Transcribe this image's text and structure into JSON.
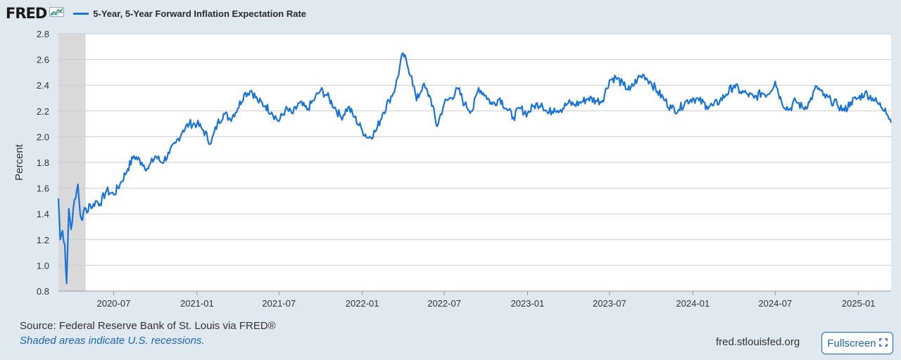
{
  "header": {
    "logo": "FRED",
    "icon": "fred-chart-icon",
    "legend_label": "5-Year, 5-Year Forward Inflation Expectation Rate"
  },
  "footer": {
    "source": "Source: Federal Reserve Bank of St. Louis via FRED®",
    "note": "Shaded areas indicate U.S. recessions.",
    "url": "fred.stlouisfed.org",
    "fullscreen_label": "Fullscreen",
    "fullscreen_icon": "expand-icon"
  },
  "colors": {
    "series": "#1a74d8",
    "recession": "#d9d9d9",
    "background": "#e1e9f0",
    "plot": "#ffffff",
    "grid": "#cccccc",
    "link": "#1a65c0"
  },
  "chart_data": {
    "type": "line",
    "title": "",
    "xlabel": "",
    "ylabel": "Percent",
    "ylim": [
      0.8,
      2.8
    ],
    "yticks": [
      "0.8",
      "1.0",
      "1.2",
      "1.4",
      "1.6",
      "1.8",
      "2.0",
      "2.2",
      "2.4",
      "2.6",
      "2.8"
    ],
    "xlim": [
      "2020-03-01",
      "2025-03-14"
    ],
    "xticks": [
      "2020-07",
      "2021-01",
      "2021-07",
      "2022-01",
      "2022-07",
      "2023-01",
      "2023-07",
      "2024-01",
      "2024-07",
      "2025-01"
    ],
    "grid": true,
    "legend_position": "top-left",
    "recessions": [
      {
        "start": "2020-03-01",
        "end": "2020-04-30"
      }
    ],
    "series": [
      {
        "name": "5-Year, 5-Year Forward Inflation Expectation Rate",
        "x": [
          "2020-03-01",
          "2020-03-05",
          "2020-03-10",
          "2020-03-15",
          "2020-03-19",
          "2020-03-24",
          "2020-03-29",
          "2020-04-03",
          "2020-04-08",
          "2020-04-13",
          "2020-04-18",
          "2020-04-23",
          "2020-04-28",
          "2020-05-03",
          "2020-05-08",
          "2020-05-15",
          "2020-05-22",
          "2020-06-01",
          "2020-06-15",
          "2020-07-01",
          "2020-07-15",
          "2020-08-01",
          "2020-08-15",
          "2020-09-01",
          "2020-09-15",
          "2020-10-01",
          "2020-10-15",
          "2020-11-01",
          "2020-11-15",
          "2020-12-01",
          "2020-12-15",
          "2021-01-01",
          "2021-01-15",
          "2021-02-01",
          "2021-02-15",
          "2021-03-01",
          "2021-03-15",
          "2021-04-01",
          "2021-04-15",
          "2021-05-01",
          "2021-05-15",
          "2021-06-01",
          "2021-06-15",
          "2021-07-01",
          "2021-07-15",
          "2021-08-01",
          "2021-08-15",
          "2021-09-01",
          "2021-09-15",
          "2021-10-01",
          "2021-10-15",
          "2021-11-01",
          "2021-11-15",
          "2021-12-01",
          "2021-12-15",
          "2022-01-01",
          "2022-01-15",
          "2022-02-01",
          "2022-02-15",
          "2022-03-01",
          "2022-03-15",
          "2022-04-01",
          "2022-04-10",
          "2022-04-20",
          "2022-05-01",
          "2022-05-15",
          "2022-06-01",
          "2022-06-15",
          "2022-07-01",
          "2022-07-15",
          "2022-08-01",
          "2022-08-15",
          "2022-09-01",
          "2022-09-15",
          "2022-10-01",
          "2022-10-15",
          "2022-11-01",
          "2022-11-15",
          "2022-12-01",
          "2022-12-15",
          "2023-01-01",
          "2023-01-15",
          "2023-02-01",
          "2023-02-15",
          "2023-03-01",
          "2023-03-15",
          "2023-04-01",
          "2023-04-15",
          "2023-05-01",
          "2023-05-15",
          "2023-06-01",
          "2023-06-15",
          "2023-07-01",
          "2023-07-15",
          "2023-08-01",
          "2023-08-15",
          "2023-09-01",
          "2023-09-15",
          "2023-10-01",
          "2023-10-15",
          "2023-11-01",
          "2023-11-15",
          "2023-12-01",
          "2023-12-15",
          "2024-01-01",
          "2024-01-15",
          "2024-02-01",
          "2024-02-15",
          "2024-03-01",
          "2024-03-15",
          "2024-04-01",
          "2024-04-15",
          "2024-05-01",
          "2024-05-15",
          "2024-06-01",
          "2024-06-15",
          "2024-07-01",
          "2024-07-15",
          "2024-08-01",
          "2024-08-15",
          "2024-09-01",
          "2024-09-15",
          "2024-10-01",
          "2024-10-15",
          "2024-11-01",
          "2024-11-15",
          "2024-12-01",
          "2024-12-15",
          "2025-01-01",
          "2025-01-15",
          "2025-02-01",
          "2025-02-15",
          "2025-03-01",
          "2025-03-14"
        ],
        "values": [
          1.52,
          1.2,
          1.27,
          1.16,
          0.86,
          1.44,
          1.28,
          1.45,
          1.52,
          1.63,
          1.4,
          1.35,
          1.45,
          1.41,
          1.48,
          1.45,
          1.5,
          1.48,
          1.58,
          1.55,
          1.63,
          1.75,
          1.85,
          1.8,
          1.75,
          1.85,
          1.8,
          1.87,
          1.95,
          2.05,
          2.1,
          2.1,
          2.05,
          1.95,
          2.1,
          2.18,
          2.14,
          2.22,
          2.33,
          2.36,
          2.28,
          2.24,
          2.19,
          2.12,
          2.21,
          2.18,
          2.26,
          2.21,
          2.28,
          2.36,
          2.32,
          2.23,
          2.15,
          2.23,
          2.15,
          2.05,
          1.99,
          2.05,
          2.18,
          2.28,
          2.38,
          2.65,
          2.56,
          2.47,
          2.28,
          2.4,
          2.3,
          2.08,
          2.26,
          2.3,
          2.37,
          2.25,
          2.2,
          2.38,
          2.32,
          2.25,
          2.3,
          2.22,
          2.15,
          2.22,
          2.18,
          2.24,
          2.26,
          2.18,
          2.22,
          2.21,
          2.26,
          2.25,
          2.27,
          2.3,
          2.28,
          2.28,
          2.44,
          2.46,
          2.4,
          2.36,
          2.45,
          2.48,
          2.42,
          2.35,
          2.28,
          2.22,
          2.21,
          2.27,
          2.3,
          2.28,
          2.24,
          2.24,
          2.28,
          2.33,
          2.4,
          2.35,
          2.33,
          2.3,
          2.34,
          2.33,
          2.43,
          2.27,
          2.21,
          2.28,
          2.22,
          2.27,
          2.39,
          2.32,
          2.28,
          2.25,
          2.2,
          2.27,
          2.3,
          2.34,
          2.3,
          2.25,
          2.22,
          2.11
        ]
      }
    ]
  }
}
